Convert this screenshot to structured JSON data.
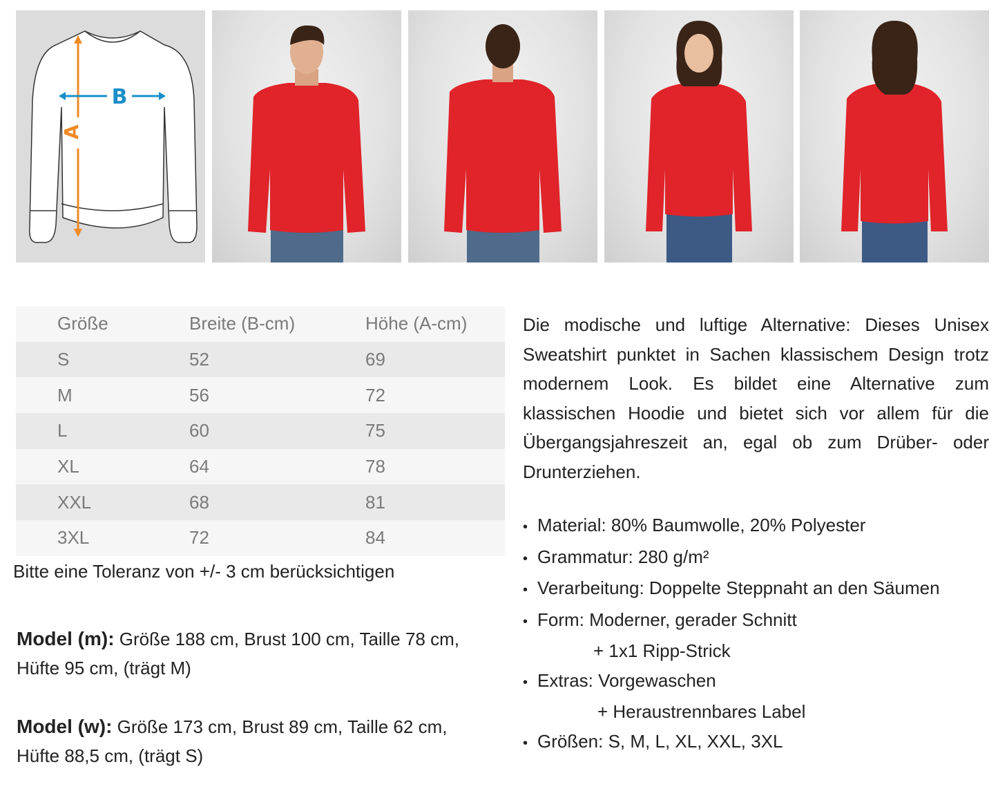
{
  "diagram": {
    "label_a": "A",
    "label_b": "B",
    "color_a": "#f08a24",
    "color_b": "#1a8fc9"
  },
  "photos": [
    {
      "name": "male-model-front"
    },
    {
      "name": "male-model-back"
    },
    {
      "name": "female-model-front"
    },
    {
      "name": "female-model-back"
    }
  ],
  "garment_color": "#e0242a",
  "size_table": {
    "headers": [
      "Größe",
      "Breite (B-cm)",
      "Höhe (A-cm)"
    ],
    "rows": [
      [
        "S",
        "52",
        "69"
      ],
      [
        "M",
        "56",
        "72"
      ],
      [
        "L",
        "60",
        "75"
      ],
      [
        "XL",
        "64",
        "78"
      ],
      [
        "XXL",
        "68",
        "81"
      ],
      [
        "3XL",
        "72",
        "84"
      ]
    ]
  },
  "tolerance_note": "Bitte eine Toleranz von +/- 3 cm berücksichtigen",
  "models": [
    {
      "label": "Model (m):",
      "text": " Größe 188 cm, Brust 100 cm, Taille 78 cm, Hüfte 95 cm, (trägt M)"
    },
    {
      "label": "Model (w):",
      "text": " Größe 173 cm, Brust 89 cm, Taille 62 cm, Hüfte 88,5 cm, (trägt S)"
    }
  ],
  "description": "Die modische und luftige Alternative: Dieses Unisex Sweatshirt punktet in Sachen klassischem Design trotz modernem Look. Es bildet eine Alternative zum klassischen Hoodie und bietet sich vor allem für die Übergangsjahreszeit an, egal ob zum Drüber- oder Drunterziehen.",
  "features": {
    "material": "Material: 80% Baumwolle, 20% Polyester",
    "grammatur": "Grammatur: 280 g/m²",
    "verarbeitung": "Verarbeitung: Doppelte Steppnaht an den Säumen",
    "form": "Form: Moderner, gerader Schnitt",
    "form_extra": "+ 1x1 Ripp-Strick",
    "extras": "Extras: Vorgewaschen",
    "extras_extra": "+ Heraustrennbares Label",
    "groessen": "Größen:  S, M, L, XL, XXL, 3XL"
  }
}
